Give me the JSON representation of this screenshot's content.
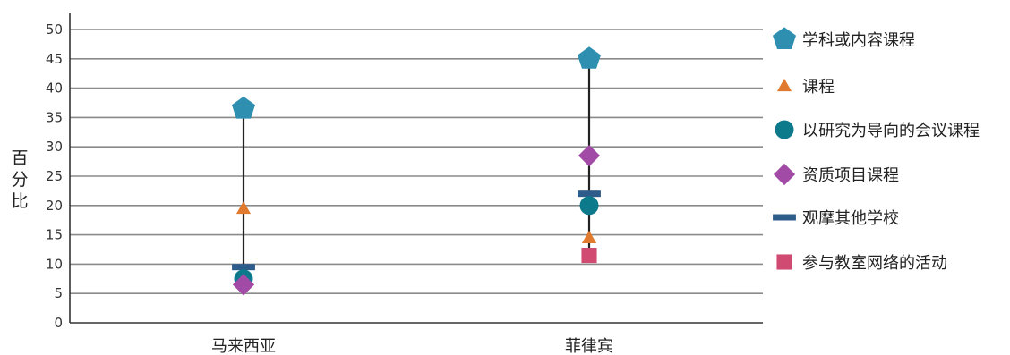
{
  "chart_data": {
    "type": "scatter",
    "title": "",
    "xlabel": "",
    "ylabel": "百分比",
    "ylim": [
      0,
      50
    ],
    "yticks": [
      0,
      5,
      10,
      15,
      20,
      25,
      30,
      35,
      40,
      45,
      50
    ],
    "grid": true,
    "legend_position": "right",
    "categories": [
      "马来西亚",
      "菲律宾"
    ],
    "series": [
      {
        "name": "学科或内容课程",
        "marker": "pentagon",
        "color": "#2e8fb0",
        "values": [
          36.5,
          45
        ]
      },
      {
        "name": "课程",
        "marker": "triangle",
        "color": "#e07a2e",
        "values": [
          19.5,
          14.5
        ]
      },
      {
        "name": "以研究为导向的会议课程",
        "marker": "circle",
        "color": "#0d7a8c",
        "values": [
          7.5,
          20
        ]
      },
      {
        "name": "资质项目课程",
        "marker": "diamond",
        "color": "#a14aa6",
        "values": [
          6.5,
          28.5
        ]
      },
      {
        "name": "观摩其他学校",
        "marker": "dash",
        "color": "#2e5c8a",
        "values": [
          9.5,
          22
        ]
      },
      {
        "name": "参与教室网络的活动",
        "marker": "square",
        "color": "#d04a72",
        "values": [
          null,
          11.5
        ]
      }
    ]
  }
}
